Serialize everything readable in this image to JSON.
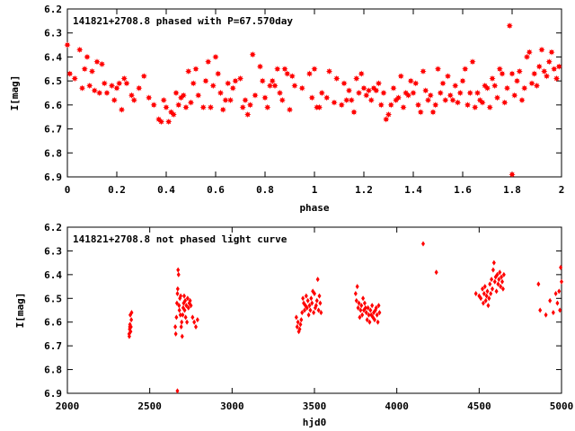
{
  "chart_data": [
    {
      "type": "scatter",
      "title": "141821+2708.8 phased with P=67.570day",
      "xlabel": "phase",
      "ylabel": "I[mag]",
      "xlim": [
        0,
        2
      ],
      "ylim": [
        6.2,
        6.9
      ],
      "y_inverted": true,
      "xticks": [
        "0",
        "0.2",
        "0.4",
        "0.6",
        "0.8",
        "1",
        "1.2",
        "1.4",
        "1.6",
        "1.8",
        "2"
      ],
      "yticks": [
        "6.2",
        "6.3",
        "6.4",
        "6.5",
        "6.6",
        "6.7",
        "6.8",
        "6.9"
      ],
      "grid": false,
      "marker": "filled-star",
      "color": "#ff0000",
      "points": [
        [
          0.0,
          6.35
        ],
        [
          0.01,
          6.47
        ],
        [
          0.03,
          6.49
        ],
        [
          0.05,
          6.37
        ],
        [
          0.06,
          6.53
        ],
        [
          0.07,
          6.45
        ],
        [
          0.08,
          6.4
        ],
        [
          0.09,
          6.52
        ],
        [
          0.1,
          6.46
        ],
        [
          0.11,
          6.54
        ],
        [
          0.12,
          6.42
        ],
        [
          0.13,
          6.55
        ],
        [
          0.14,
          6.43
        ],
        [
          0.15,
          6.51
        ],
        [
          0.16,
          6.55
        ],
        [
          0.18,
          6.52
        ],
        [
          0.19,
          6.58
        ],
        [
          0.2,
          6.53
        ],
        [
          0.21,
          6.51
        ],
        [
          0.22,
          6.62
        ],
        [
          0.23,
          6.49
        ],
        [
          0.24,
          6.51
        ],
        [
          0.26,
          6.56
        ],
        [
          0.27,
          6.58
        ],
        [
          0.29,
          6.53
        ],
        [
          0.31,
          6.48
        ],
        [
          0.33,
          6.57
        ],
        [
          0.35,
          6.6
        ],
        [
          0.37,
          6.66
        ],
        [
          0.38,
          6.67
        ],
        [
          0.39,
          6.58
        ],
        [
          0.4,
          6.61
        ],
        [
          0.41,
          6.67
        ],
        [
          0.42,
          6.63
        ],
        [
          0.43,
          6.64
        ],
        [
          0.44,
          6.55
        ],
        [
          0.45,
          6.6
        ],
        [
          0.46,
          6.57
        ],
        [
          0.47,
          6.56
        ],
        [
          0.48,
          6.61
        ],
        [
          0.49,
          6.46
        ],
        [
          0.5,
          6.59
        ],
        [
          0.51,
          6.51
        ],
        [
          0.52,
          6.45
        ],
        [
          0.53,
          6.56
        ],
        [
          0.55,
          6.61
        ],
        [
          0.56,
          6.5
        ],
        [
          0.57,
          6.42
        ],
        [
          0.58,
          6.61
        ],
        [
          0.59,
          6.52
        ],
        [
          0.6,
          6.4
        ],
        [
          0.61,
          6.47
        ],
        [
          0.62,
          6.55
        ],
        [
          0.63,
          6.62
        ],
        [
          0.64,
          6.58
        ],
        [
          0.65,
          6.51
        ],
        [
          0.66,
          6.58
        ],
        [
          0.67,
          6.53
        ],
        [
          0.68,
          6.5
        ],
        [
          0.7,
          6.49
        ],
        [
          0.71,
          6.61
        ],
        [
          0.72,
          6.58
        ],
        [
          0.73,
          6.64
        ],
        [
          0.74,
          6.6
        ],
        [
          0.75,
          6.39
        ],
        [
          0.76,
          6.56
        ],
        [
          0.78,
          6.44
        ],
        [
          0.79,
          6.5
        ],
        [
          0.8,
          6.57
        ],
        [
          0.81,
          6.61
        ],
        [
          0.82,
          6.52
        ],
        [
          0.83,
          6.5
        ],
        [
          0.84,
          6.52
        ],
        [
          0.85,
          6.45
        ],
        [
          0.86,
          6.55
        ],
        [
          0.87,
          6.58
        ],
        [
          0.88,
          6.45
        ],
        [
          0.89,
          6.47
        ],
        [
          0.9,
          6.62
        ],
        [
          0.91,
          6.48
        ],
        [
          0.92,
          6.52
        ],
        [
          0.95,
          6.53
        ],
        [
          0.98,
          6.47
        ],
        [
          0.99,
          6.57
        ],
        [
          1.0,
          6.45
        ],
        [
          1.01,
          6.61
        ],
        [
          1.02,
          6.61
        ],
        [
          1.03,
          6.55
        ],
        [
          1.05,
          6.57
        ],
        [
          1.06,
          6.46
        ],
        [
          1.08,
          6.59
        ],
        [
          1.09,
          6.49
        ],
        [
          1.11,
          6.6
        ],
        [
          1.12,
          6.51
        ],
        [
          1.13,
          6.58
        ],
        [
          1.14,
          6.54
        ],
        [
          1.15,
          6.58
        ],
        [
          1.16,
          6.63
        ],
        [
          1.17,
          6.49
        ],
        [
          1.18,
          6.55
        ],
        [
          1.19,
          6.47
        ],
        [
          1.2,
          6.53
        ],
        [
          1.21,
          6.56
        ],
        [
          1.22,
          6.54
        ],
        [
          1.23,
          6.58
        ],
        [
          1.24,
          6.53
        ],
        [
          1.25,
          6.54
        ],
        [
          1.26,
          6.51
        ],
        [
          1.27,
          6.6
        ],
        [
          1.28,
          6.55
        ],
        [
          1.29,
          6.66
        ],
        [
          1.3,
          6.64
        ],
        [
          1.31,
          6.6
        ],
        [
          1.32,
          6.53
        ],
        [
          1.33,
          6.58
        ],
        [
          1.34,
          6.57
        ],
        [
          1.35,
          6.48
        ],
        [
          1.36,
          6.61
        ],
        [
          1.37,
          6.55
        ],
        [
          1.38,
          6.56
        ],
        [
          1.39,
          6.5
        ],
        [
          1.4,
          6.55
        ],
        [
          1.41,
          6.51
        ],
        [
          1.42,
          6.6
        ],
        [
          1.43,
          6.63
        ],
        [
          1.44,
          6.46
        ],
        [
          1.45,
          6.54
        ],
        [
          1.46,
          6.58
        ],
        [
          1.47,
          6.56
        ],
        [
          1.48,
          6.63
        ],
        [
          1.49,
          6.6
        ],
        [
          1.5,
          6.45
        ],
        [
          1.51,
          6.55
        ],
        [
          1.52,
          6.51
        ],
        [
          1.53,
          6.58
        ],
        [
          1.54,
          6.48
        ],
        [
          1.55,
          6.56
        ],
        [
          1.56,
          6.58
        ],
        [
          1.57,
          6.52
        ],
        [
          1.58,
          6.59
        ],
        [
          1.59,
          6.55
        ],
        [
          1.6,
          6.5
        ],
        [
          1.61,
          6.45
        ],
        [
          1.62,
          6.6
        ],
        [
          1.63,
          6.55
        ],
        [
          1.64,
          6.42
        ],
        [
          1.65,
          6.61
        ],
        [
          1.66,
          6.55
        ],
        [
          1.67,
          6.58
        ],
        [
          1.68,
          6.59
        ],
        [
          1.69,
          6.52
        ],
        [
          1.7,
          6.53
        ],
        [
          1.71,
          6.61
        ],
        [
          1.72,
          6.49
        ],
        [
          1.73,
          6.52
        ],
        [
          1.74,
          6.57
        ],
        [
          1.75,
          6.45
        ],
        [
          1.76,
          6.47
        ],
        [
          1.77,
          6.59
        ],
        [
          1.78,
          6.53
        ],
        [
          1.79,
          6.27
        ],
        [
          1.8,
          6.47
        ],
        [
          1.81,
          6.56
        ],
        [
          1.82,
          6.5
        ],
        [
          1.83,
          6.46
        ],
        [
          1.84,
          6.58
        ],
        [
          1.85,
          6.53
        ],
        [
          1.86,
          6.4
        ],
        [
          1.87,
          6.38
        ],
        [
          1.88,
          6.51
        ],
        [
          1.89,
          6.47
        ],
        [
          1.9,
          6.52
        ],
        [
          1.91,
          6.44
        ],
        [
          1.92,
          6.37
        ],
        [
          1.93,
          6.46
        ],
        [
          1.94,
          6.48
        ],
        [
          1.95,
          6.42
        ],
        [
          1.96,
          6.38
        ],
        [
          1.97,
          6.45
        ],
        [
          1.98,
          6.49
        ],
        [
          1.99,
          6.44
        ],
        [
          1.8,
          6.89
        ]
      ]
    },
    {
      "type": "scatter",
      "title": "141821+2708.8 not phased light curve",
      "xlabel": "hjd0",
      "ylabel": "I[mag]",
      "xlim": [
        2000,
        5000
      ],
      "ylim": [
        6.2,
        6.9
      ],
      "y_inverted": true,
      "xticks": [
        "2000",
        "2500",
        "3000",
        "3500",
        "4000",
        "4500",
        "5000"
      ],
      "yticks": [
        "6.2",
        "6.3",
        "6.4",
        "6.5",
        "6.6",
        "6.7",
        "6.8",
        "6.9"
      ],
      "grid": false,
      "marker": "filled-diamond",
      "color": "#ff0000",
      "points": [
        [
          2375,
          6.65
        ],
        [
          2378,
          6.63
        ],
        [
          2380,
          6.61
        ],
        [
          2382,
          6.57
        ],
        [
          2384,
          6.64
        ],
        [
          2386,
          6.62
        ],
        [
          2388,
          6.59
        ],
        [
          2390,
          6.56
        ],
        [
          2376,
          6.66
        ],
        [
          2379,
          6.62
        ],
        [
          2655,
          6.62
        ],
        [
          2658,
          6.65
        ],
        [
          2662,
          6.58
        ],
        [
          2665,
          6.52
        ],
        [
          2668,
          6.48
        ],
        [
          2670,
          6.46
        ],
        [
          2672,
          6.38
        ],
        [
          2675,
          6.4
        ],
        [
          2678,
          6.53
        ],
        [
          2680,
          6.55
        ],
        [
          2683,
          6.5
        ],
        [
          2686,
          6.57
        ],
        [
          2688,
          6.49
        ],
        [
          2691,
          6.62
        ],
        [
          2694,
          6.6
        ],
        [
          2697,
          6.66
        ],
        [
          2700,
          6.57
        ],
        [
          2703,
          6.54
        ],
        [
          2706,
          6.52
        ],
        [
          2709,
          6.49
        ],
        [
          2712,
          6.55
        ],
        [
          2715,
          6.51
        ],
        [
          2718,
          6.58
        ],
        [
          2722,
          6.53
        ],
        [
          2726,
          6.6
        ],
        [
          2730,
          6.5
        ],
        [
          2735,
          6.54
        ],
        [
          2740,
          6.52
        ],
        [
          2745,
          6.51
        ],
        [
          2750,
          6.53
        ],
        [
          2760,
          6.58
        ],
        [
          2770,
          6.6
        ],
        [
          2780,
          6.62
        ],
        [
          2790,
          6.59
        ],
        [
          2668,
          6.89
        ],
        [
          3390,
          6.58
        ],
        [
          3395,
          6.62
        ],
        [
          3400,
          6.6
        ],
        [
          3405,
          6.64
        ],
        [
          3410,
          6.63
        ],
        [
          3415,
          6.61
        ],
        [
          3420,
          6.59
        ],
        [
          3425,
          6.56
        ],
        [
          3430,
          6.5
        ],
        [
          3435,
          6.52
        ],
        [
          3440,
          6.55
        ],
        [
          3445,
          6.53
        ],
        [
          3450,
          6.49
        ],
        [
          3455,
          6.54
        ],
        [
          3460,
          6.51
        ],
        [
          3465,
          6.57
        ],
        [
          3470,
          6.53
        ],
        [
          3475,
          6.55
        ],
        [
          3480,
          6.5
        ],
        [
          3485,
          6.52
        ],
        [
          3490,
          6.47
        ],
        [
          3495,
          6.56
        ],
        [
          3500,
          6.48
        ],
        [
          3505,
          6.54
        ],
        [
          3510,
          6.53
        ],
        [
          3515,
          6.51
        ],
        [
          3520,
          6.42
        ],
        [
          3525,
          6.55
        ],
        [
          3530,
          6.49
        ],
        [
          3535,
          6.52
        ],
        [
          3540,
          6.56
        ],
        [
          3750,
          6.48
        ],
        [
          3755,
          6.51
        ],
        [
          3760,
          6.45
        ],
        [
          3765,
          6.54
        ],
        [
          3770,
          6.52
        ],
        [
          3775,
          6.58
        ],
        [
          3780,
          6.55
        ],
        [
          3785,
          6.53
        ],
        [
          3790,
          6.57
        ],
        [
          3795,
          6.5
        ],
        [
          3800,
          6.55
        ],
        [
          3805,
          6.52
        ],
        [
          3810,
          6.54
        ],
        [
          3815,
          6.56
        ],
        [
          3820,
          6.59
        ],
        [
          3825,
          6.54
        ],
        [
          3830,
          6.57
        ],
        [
          3835,
          6.6
        ],
        [
          3840,
          6.55
        ],
        [
          3845,
          6.57
        ],
        [
          3850,
          6.53
        ],
        [
          3855,
          6.58
        ],
        [
          3860,
          6.56
        ],
        [
          3865,
          6.59
        ],
        [
          3870,
          6.55
        ],
        [
          3875,
          6.54
        ],
        [
          3880,
          6.57
        ],
        [
          3885,
          6.6
        ],
        [
          3890,
          6.53
        ],
        [
          3895,
          6.56
        ],
        [
          4160,
          6.27
        ],
        [
          4240,
          6.39
        ],
        [
          4480,
          6.48
        ],
        [
          4500,
          6.49
        ],
        [
          4510,
          6.5
        ],
        [
          4520,
          6.46
        ],
        [
          4525,
          6.52
        ],
        [
          4530,
          6.48
        ],
        [
          4535,
          6.45
        ],
        [
          4540,
          6.51
        ],
        [
          4545,
          6.49
        ],
        [
          4550,
          6.47
        ],
        [
          4555,
          6.53
        ],
        [
          4560,
          6.5
        ],
        [
          4565,
          6.44
        ],
        [
          4570,
          6.48
        ],
        [
          4575,
          6.42
        ],
        [
          4580,
          6.46
        ],
        [
          4585,
          6.38
        ],
        [
          4590,
          6.35
        ],
        [
          4595,
          6.43
        ],
        [
          4600,
          6.41
        ],
        [
          4605,
          6.47
        ],
        [
          4610,
          6.4
        ],
        [
          4615,
          6.44
        ],
        [
          4620,
          6.42
        ],
        [
          4625,
          6.39
        ],
        [
          4630,
          6.45
        ],
        [
          4635,
          6.41
        ],
        [
          4640,
          6.43
        ],
        [
          4645,
          6.46
        ],
        [
          4650,
          6.4
        ],
        [
          4860,
          6.44
        ],
        [
          4870,
          6.55
        ],
        [
          4905,
          6.57
        ],
        [
          4930,
          6.51
        ],
        [
          4950,
          6.56
        ],
        [
          4965,
          6.48
        ],
        [
          4975,
          6.52
        ],
        [
          4985,
          6.47
        ],
        [
          4990,
          6.55
        ],
        [
          4995,
          6.37
        ],
        [
          5000,
          6.43
        ]
      ]
    }
  ]
}
